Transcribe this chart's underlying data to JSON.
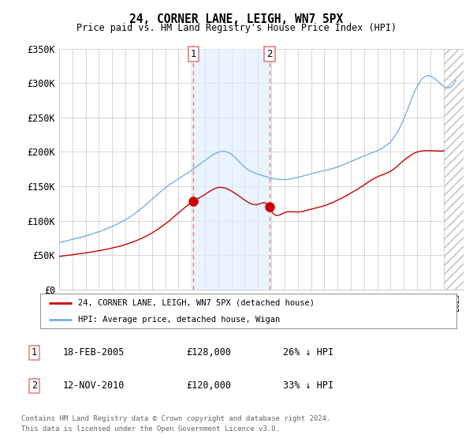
{
  "title": "24, CORNER LANE, LEIGH, WN7 5PX",
  "subtitle": "Price paid vs. HM Land Registry's House Price Index (HPI)",
  "ylim": [
    0,
    350000
  ],
  "yticks": [
    0,
    50000,
    100000,
    150000,
    200000,
    250000,
    300000,
    350000
  ],
  "ytick_labels": [
    "£0",
    "£50K",
    "£100K",
    "£150K",
    "£200K",
    "£250K",
    "£300K",
    "£350K"
  ],
  "hpi_color": "#7aafe0",
  "price_color": "#cc0000",
  "marker_color": "#cc0000",
  "vline_color": "#e08080",
  "shade_color": "#ddeeff",
  "grid_color": "#d0d0d0",
  "bg_color": "#ffffff",
  "sale1_date": "18-FEB-2005",
  "sale1_price": 128000,
  "sale1_label": "26% ↓ HPI",
  "sale1_x": 2005.12,
  "sale2_date": "12-NOV-2010",
  "sale2_price": 120000,
  "sale2_label": "33% ↓ HPI",
  "sale2_x": 2010.87,
  "hatch_start": 2024.0,
  "xlim_start": 1995.0,
  "xlim_end": 2025.5,
  "legend_line1": "24, CORNER LANE, LEIGH, WN7 5PX (detached house)",
  "legend_line2": "HPI: Average price, detached house, Wigan",
  "footnote1": "Contains HM Land Registry data © Crown copyright and database right 2024.",
  "footnote2": "This data is licensed under the Open Government Licence v3.0."
}
